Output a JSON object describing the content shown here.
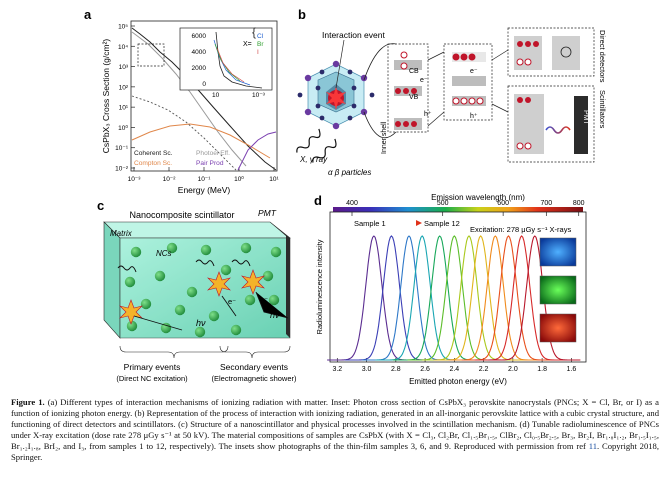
{
  "panel_a": {
    "label": "a",
    "ylabel": "CsPbX₃ Cross Section (g/cm²)",
    "xlabel": "Energy (MeV)",
    "yticks": [
      "10⁵",
      "10⁴",
      "10³",
      "10²",
      "10¹",
      "10⁰",
      "10⁻¹",
      "10⁻²"
    ],
    "xticks": [
      "10⁻³",
      "10⁻²",
      "10⁻¹",
      "10⁰",
      "10¹"
    ],
    "legend": [
      "Coherent Sc.",
      "Photoel Eff.",
      "Compton Sc.",
      "Pair Prod"
    ],
    "legend_colors": [
      "#222222",
      "#9a9a9a",
      "#e0874a",
      "#7a3fb0"
    ],
    "inset_yticks": [
      "6000",
      "4000",
      "2000",
      "0"
    ],
    "inset_xticks": [
      "10",
      "10⁻³"
    ],
    "inset_legend_prefix": "X=",
    "inset_legend": [
      "Cl",
      "Br",
      "I"
    ],
    "inset_legend_colors": [
      "#1f5fd0",
      "#2e9e2e",
      "#d04a4a"
    ]
  },
  "panel_b": {
    "label": "b",
    "event_label": "Interaction event",
    "rays_label": "X, γ ray",
    "particles_label": "α β particles",
    "cb": "CB",
    "vb": "VB",
    "inner_shell": "Inner shell",
    "e_minus": "e⁻",
    "h_plus": "h⁺",
    "direct_detectors": "Direct detectors",
    "scintillators": "Scintillators",
    "pmt": "PMT"
  },
  "panel_c": {
    "label": "c",
    "title": "Nanocomposite scintillator",
    "pmt": "PMT",
    "matrix": "Matrix",
    "ncs": "NCs",
    "hv1": "hν",
    "hv2": "hν",
    "e1": "e⁻",
    "e2": "e⁻",
    "primary_title": "Primary events",
    "primary_sub": "(Direct NC excitation)",
    "secondary_title": "Secondary events",
    "secondary_sub": "(Electromagnetic shower)"
  },
  "chart_data": {
    "type": "line",
    "title": "Emission wavelength (nm)",
    "xlabel": "Emitted photon energy (eV)",
    "ylabel": "Radioluminescence intensity",
    "x_ticks_bottom": [
      "3.2",
      "3.0",
      "2.8",
      "2.6",
      "2.4",
      "2.2",
      "2.0",
      "1.8",
      "1.6"
    ],
    "x_ticks_top": [
      "400",
      "500",
      "600",
      "700",
      "800"
    ],
    "xlim": [
      3.25,
      1.5
    ],
    "annotation_excitation": "Excitation: 278 μGy s⁻¹ X-rays",
    "annotation_sample_start": "Sample 1",
    "annotation_sample_end": "Sample 12",
    "series": [
      {
        "peak_ev": 2.95,
        "color": "#5b2d91"
      },
      {
        "peak_ev": 2.83,
        "color": "#3b3fb6"
      },
      {
        "peak_ev": 2.71,
        "color": "#2e78c8"
      },
      {
        "peak_ev": 2.62,
        "color": "#1aa6b3"
      },
      {
        "peak_ev": 2.5,
        "color": "#18a85a"
      },
      {
        "peak_ev": 2.4,
        "color": "#5cbd2a"
      },
      {
        "peak_ev": 2.3,
        "color": "#a9c81c"
      },
      {
        "peak_ev": 2.22,
        "color": "#e0b51c"
      },
      {
        "peak_ev": 2.12,
        "color": "#f08a1c"
      },
      {
        "peak_ev": 2.03,
        "color": "#e8501c"
      },
      {
        "peak_ev": 1.94,
        "color": "#d62a2a"
      },
      {
        "peak_ev": 1.85,
        "color": "#b8182c"
      }
    ]
  },
  "caption": {
    "p1": "Figure 1. (a) Different types of interaction mechanisms of ionizing radiation with matter. Inset: Photon cross section of CsPbX₃ perovskite nanocrystals (PNCs; X = Cl, Br, or I) as a function of ionizing photon energy. (b) Representation of the process of interaction with ionizing radiation, generated in an all-inorganic perovskite lattice with a cubic crystal structure, and functioning of direct detectors and scintillators. (c) Structure of a nanoscintillator and physical processes involved in the scintillation mechanism. (d) Tunable radioluminescence of PNCs under X-ray excitation (dose rate 278 μGy s⁻¹ at 50 kV). The material compositions of samples are CsPbX (with X = Cl₃, Cl₂Br, Cl₁.₅Br₁.₅, ClBr₂, Cl₀.₅Br₂.₅, Br₃, Br₂I, Br₁.₈I₁.₂, Br₁.₅I₁.₅, Br₁.₂I₁.₈, BrI₂, and I₃, from samples 1 to 12, respectively). The insets show photographs of the thin-film samples 3, 6, and 9. Reproduced with permission from ref ",
    "ref": "11",
    "p2": ". Copyright 2018, Springer."
  }
}
